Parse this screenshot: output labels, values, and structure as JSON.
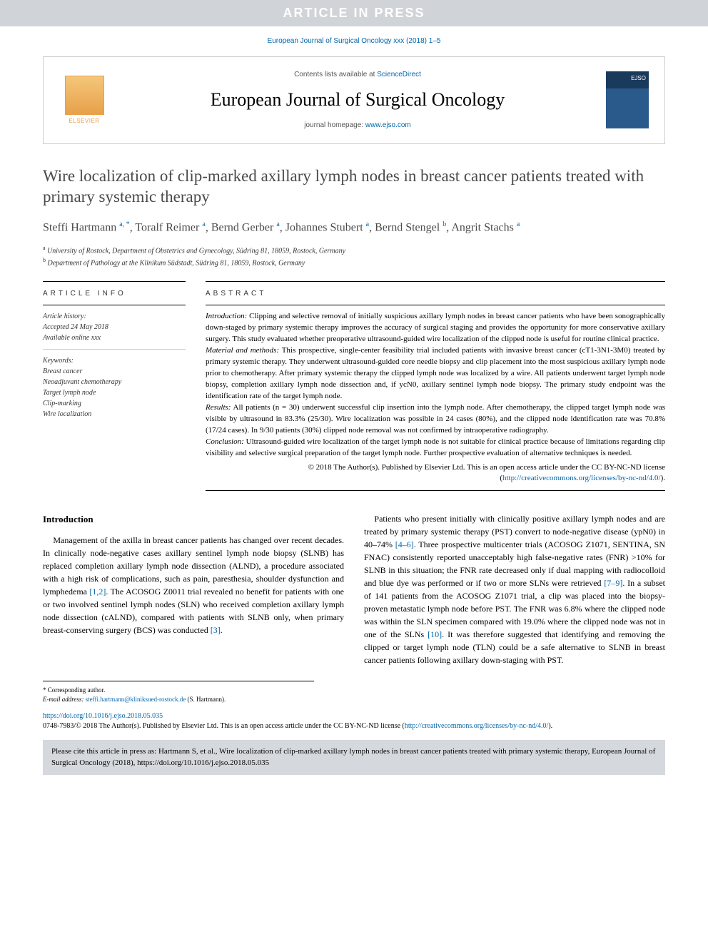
{
  "banner": "ARTICLE IN PRESS",
  "top_citation": "European Journal of Surgical Oncology xxx (2018) 1–5",
  "header": {
    "contents_prefix": "Contents lists available at ",
    "contents_link": "ScienceDirect",
    "journal_name": "European Journal of Surgical Oncology",
    "homepage_prefix": "journal homepage: ",
    "homepage_link": "www.ejso.com",
    "elsevier_label": "ELSEVIER"
  },
  "article": {
    "title": "Wire localization of clip-marked axillary lymph nodes in breast cancer patients treated with primary systemic therapy",
    "authors_html": "Steffi Hartmann <sup>a, *</sup>, Toralf Reimer <sup>a</sup>, Bernd Gerber <sup>a</sup>, Johannes Stubert <sup>a</sup>, Bernd Stengel <sup>b</sup>, Angrit Stachs <sup>a</sup>",
    "affiliations": {
      "a": "University of Rostock, Department of Obstetrics and Gynecology, Südring 81, 18059, Rostock, Germany",
      "b": "Department of Pathology at the Klinikum Südstadt, Südring 81, 18059, Rostock, Germany"
    }
  },
  "info": {
    "label": "ARTICLE INFO",
    "history_label": "Article history:",
    "accepted": "Accepted 24 May 2018",
    "available": "Available online xxx",
    "keywords_label": "Keywords:",
    "keywords": [
      "Breast cancer",
      "Neoadjuvant chemotherapy",
      "Target lymph node",
      "Clip-marking",
      "Wire localization"
    ]
  },
  "abstract": {
    "label": "ABSTRACT",
    "introduction_head": "Introduction:",
    "introduction": " Clipping and selective removal of initially suspicious axillary lymph nodes in breast cancer patients who have been sonographically down-staged by primary systemic therapy improves the accuracy of surgical staging and provides the opportunity for more conservative axillary surgery. This study evaluated whether preoperative ultrasound-guided wire localization of the clipped node is useful for routine clinical practice.",
    "methods_head": "Material and methods:",
    "methods": " This prospective, single-center feasibility trial included patients with invasive breast cancer (cT1-3N1-3M0) treated by primary systemic therapy. They underwent ultrasound-guided core needle biopsy and clip placement into the most suspicious axillary lymph node prior to chemotherapy. After primary systemic therapy the clipped lymph node was localized by a wire. All patients underwent target lymph node biopsy, completion axillary lymph node dissection and, if ycN0, axillary sentinel lymph node biopsy. The primary study endpoint was the identification rate of the target lymph node.",
    "results_head": "Results:",
    "results": " All patients (n = 30) underwent successful clip insertion into the lymph node. After chemotherapy, the clipped target lymph node was visible by ultrasound in 83.3% (25/30). Wire localization was possible in 24 cases (80%), and the clipped node identification rate was 70.8% (17/24 cases). In 9/30 patients (30%) clipped node removal was not confirmed by intraoperative radiography.",
    "conclusion_head": "Conclusion:",
    "conclusion": " Ultrasound-guided wire localization of the target lymph node is not suitable for clinical practice because of limitations regarding clip visibility and selective surgical preparation of the target lymph node. Further prospective evaluation of alternative techniques is needed.",
    "copyright": "© 2018 The Author(s). Published by Elsevier Ltd. This is an open access article under the CC BY-NC-ND license (",
    "license_link": "http://creativecommons.org/licenses/by-nc-nd/4.0/",
    "copyright_close": ")."
  },
  "body": {
    "heading": "Introduction",
    "col1": "Management of the axilla in breast cancer patients has changed over recent decades. In clinically node-negative cases axillary sentinel lymph node biopsy (SLNB) has replaced completion axillary lymph node dissection (ALND), a procedure associated with a high risk of complications, such as pain, paresthesia, shoulder dysfunction and lymphedema [1,2]. The ACOSOG Z0011 trial revealed no benefit for patients with one or two involved sentinel lymph nodes (SLN) who received completion axillary lymph node dissection (cALND), compared with patients with SLNB only, when primary breast-conserving surgery (BCS) was conducted [3].",
    "col2": "Patients who present initially with clinically positive axillary lymph nodes and are treated by primary systemic therapy (PST) convert to node-negative disease (ypN0) in 40–74% [4–6]. Three prospective multicenter trials (ACOSOG Z1071, SENTINA, SN FNAC) consistently reported unacceptably high false-negative rates (FNR) >10% for SLNB in this situation; the FNR rate decreased only if dual mapping with radiocolloid and blue dye was performed or if two or more SLNs were retrieved [7–9]. In a subset of 141 patients from the ACOSOG Z1071 trial, a clip was placed into the biopsy-proven metastatic lymph node before PST. The FNR was 6.8% where the clipped node was within the SLN specimen compared with 19.0% where the clipped node was not in one of the SLNs [10]. It was therefore suggested that identifying and removing the clipped or target lymph node (TLN) could be a safe alternative to SLNB in breast cancer patients following axillary down-staging with PST.",
    "refs_col1": {
      "r12": "[1,2]",
      "r3": "[3]"
    },
    "refs_col2": {
      "r46": "[4–6]",
      "r79": "[7–9]",
      "r10": "[10]"
    }
  },
  "footnote": {
    "corresponding": "* Corresponding author.",
    "email_label": "E-mail address:",
    "email": "steffi.hartmann@kliniksued-rostock.de",
    "email_who": " (S. Hartmann)."
  },
  "doi": {
    "link": "https://doi.org/10.1016/j.ejso.2018.05.035",
    "line2_pre": "0748-7983/© 2018 The Author(s). Published by Elsevier Ltd. This is an open access article under the CC BY-NC-ND license (",
    "line2_link": "http://creativecommons.org/licenses/by-nc-nd/4.0/",
    "line2_post": ")."
  },
  "citebox": "Please cite this article in press as: Hartmann S, et al., Wire localization of clip-marked axillary lymph nodes in breast cancer patients treated with primary systemic therapy, European Journal of Surgical Oncology (2018), https://doi.org/10.1016/j.ejso.2018.05.035"
}
